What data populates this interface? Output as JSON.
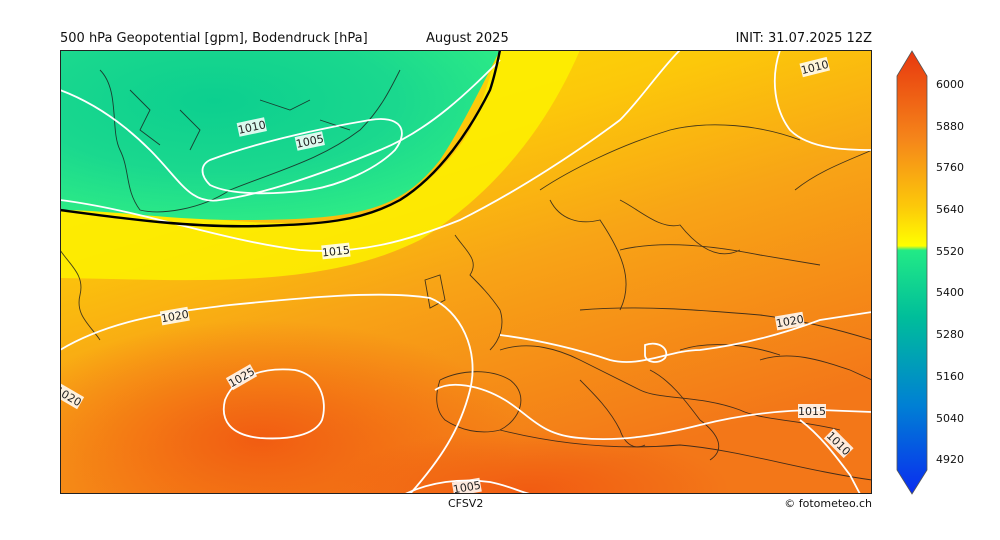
{
  "header": {
    "left": "500 hPa Geopotential [gpm], Bodendruck [hPa]",
    "center": "August 2025",
    "right": "INIT: 31.07.2025 12Z"
  },
  "footer": {
    "model": "CFSV2",
    "credit": "© fotometeo.ch"
  },
  "map": {
    "region": "North Atlantic and Europe",
    "field": "500 hPa geopotential height (gpm), shaded",
    "overlay": "mean sea level pressure isobars (hPa), white contours",
    "highlight_contour_color": "#000000",
    "isobar_labels": [
      "1010",
      "1005",
      "1015",
      "1020",
      "1025",
      "1020",
      "1015",
      "1010",
      "1005",
      "1010",
      "1020"
    ]
  },
  "colorbar": {
    "ticks": [
      "6000",
      "5880",
      "5760",
      "5640",
      "5520",
      "5400",
      "5280",
      "5160",
      "5040",
      "4920"
    ],
    "colors": {
      "top": "#e8380f",
      "orange": "#f5861a",
      "gold": "#fcc80a",
      "yellow": "#ffff00",
      "green": "#22ea86",
      "teal": "#00be9a",
      "blue": "#0080d4",
      "deep_blue": "#0a2cf0"
    }
  }
}
